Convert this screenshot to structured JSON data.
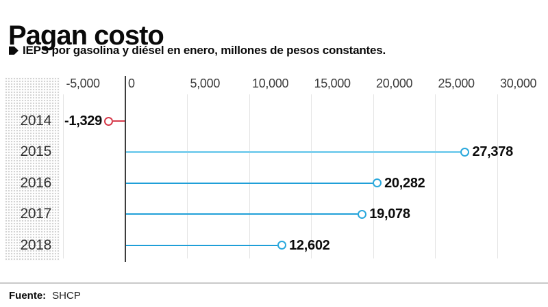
{
  "header": {
    "title": "Pagan costo",
    "subtitle": "IEPS por gasolina y diésel en enero, millones de pesos constantes."
  },
  "footer": {
    "source_label": "Fuente:",
    "source_value": "SHCP"
  },
  "theme": {
    "accent_blue": "#29a8dc",
    "light_blue": "#7fd0ee",
    "line_blue": "#1f9fd8",
    "negative_red": "#d63a4a",
    "axis_dark": "#3d3d3d",
    "gridline": "#e4e4e4",
    "divider": "#c9c9c9",
    "value_text": "#0c0c0c"
  },
  "chart_data": {
    "type": "bar",
    "orientation": "horizontal",
    "title": "Pagan costo",
    "subtitle": "IEPS por gasolina y diésel en enero, millones de pesos constantes.",
    "categories": [
      "2014",
      "2015",
      "2016",
      "2017",
      "2018"
    ],
    "values": [
      -1329,
      27378,
      20282,
      19078,
      12602
    ],
    "xlim": [
      -5000,
      30000
    ],
    "ticks": [
      -5000,
      0,
      5000,
      10000,
      15000,
      20000,
      25000,
      30000
    ],
    "tick_labels": [
      "-5,000",
      "0",
      "5,000",
      "10,000",
      "15,000",
      "20,000",
      "25,000",
      "30,000"
    ],
    "grid": true,
    "legend": "none",
    "rows": [
      {
        "category": "2014",
        "value": -1329,
        "label": "-1,329",
        "line_color": "#d63a4a",
        "line_width": 2,
        "marker_color": "#d63a4a"
      },
      {
        "category": "2015",
        "value": 27378,
        "label": "27,378",
        "line_color": "#7fd0ee",
        "line_width": 3,
        "marker_color": "#29a8dc"
      },
      {
        "category": "2016",
        "value": 20282,
        "label": "20,282",
        "line_color": "#1f9fd8",
        "line_width": 2,
        "marker_color": "#29a8dc"
      },
      {
        "category": "2017",
        "value": 19078,
        "label": "19,078",
        "line_color": "#1f9fd8",
        "line_width": 2,
        "marker_color": "#29a8dc"
      },
      {
        "category": "2018",
        "value": 12602,
        "label": "12,602",
        "line_color": "#1f9fd8",
        "line_width": 2,
        "marker_color": "#29a8dc"
      }
    ]
  }
}
